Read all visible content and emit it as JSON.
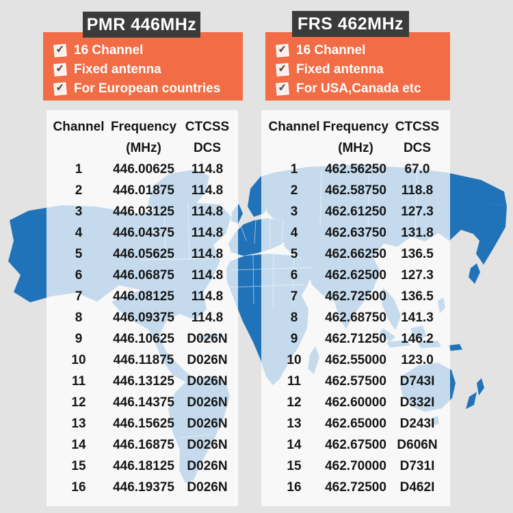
{
  "panels": [
    {
      "title": "PMR 446MHz",
      "features": [
        "16 Channel",
        "Fixed antenna",
        "For European countries"
      ]
    },
    {
      "title": "FRS 462MHz",
      "features": [
        "16 Channel",
        "Fixed antenna",
        "For USA,Canada etc"
      ]
    }
  ],
  "chart_data": [
    {
      "type": "table",
      "title": "PMR 446MHz",
      "columns": [
        "Channel",
        "Frequency (MHz)",
        "CTCSS DCS"
      ],
      "header_row1": [
        "Channel",
        "Frequency",
        "CTCSS"
      ],
      "header_row2": [
        "",
        "(MHz)",
        "DCS"
      ],
      "rows": [
        [
          "1",
          "446.00625",
          "114.8"
        ],
        [
          "2",
          "446.01875",
          "114.8"
        ],
        [
          "3",
          "446.03125",
          "114.8"
        ],
        [
          "4",
          "446.04375",
          "114.8"
        ],
        [
          "5",
          "446.05625",
          "114.8"
        ],
        [
          "6",
          "446.06875",
          "114.8"
        ],
        [
          "7",
          "446.08125",
          "114.8"
        ],
        [
          "8",
          "446.09375",
          "114.8"
        ],
        [
          "9",
          "446.10625",
          "D026N"
        ],
        [
          "10",
          "446.11875",
          "D026N"
        ],
        [
          "11",
          "446.13125",
          "D026N"
        ],
        [
          "12",
          "446.14375",
          "D026N"
        ],
        [
          "13",
          "446.15625",
          "D026N"
        ],
        [
          "14",
          "446.16875",
          "D026N"
        ],
        [
          "15",
          "446.18125",
          "D026N"
        ],
        [
          "16",
          "446.19375",
          "D026N"
        ]
      ]
    },
    {
      "type": "table",
      "title": "FRS 462MHz",
      "columns": [
        "Channel",
        "Frequency (MHz)",
        "CTCSS DCS"
      ],
      "header_row1": [
        "Channel",
        "Frequency",
        "CTCSS"
      ],
      "header_row2": [
        "",
        "(MHz)",
        "DCS"
      ],
      "rows": [
        [
          "1",
          "462.56250",
          "67.0"
        ],
        [
          "2",
          "462.58750",
          "118.8"
        ],
        [
          "3",
          "462.61250",
          "127.3"
        ],
        [
          "4",
          "462.63750",
          "131.8"
        ],
        [
          "5",
          "462.66250",
          "136.5"
        ],
        [
          "6",
          "462.62500",
          "127.3"
        ],
        [
          "7",
          "462.72500",
          "136.5"
        ],
        [
          "8",
          "462.68750",
          "141.3"
        ],
        [
          "9",
          "462.71250",
          "146.2"
        ],
        [
          "10",
          "462.55000",
          "123.0"
        ],
        [
          "11",
          "462.57500",
          "D743I"
        ],
        [
          "12",
          "462.60000",
          "D332I"
        ],
        [
          "13",
          "462.65000",
          "D243I"
        ],
        [
          "14",
          "462.67500",
          "D606N"
        ],
        [
          "15",
          "462.70000",
          "D731I"
        ],
        [
          "16",
          "462.72500",
          "D462I"
        ]
      ]
    }
  ],
  "icons": {
    "checkmark": "check-in-box-icon"
  },
  "colors": {
    "accent_orange": "#F26C45",
    "title_bar_dark": "#3B3B3B",
    "map_blue": "#2173B9",
    "background_gray": "#E3E3E3",
    "table_text": "#151515",
    "feature_text": "#FFFFFF"
  }
}
